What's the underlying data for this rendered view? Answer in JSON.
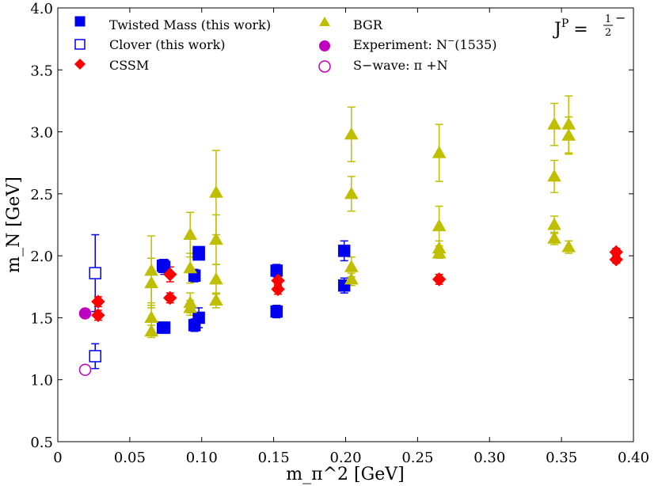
{
  "chart_data": {
    "type": "scatter",
    "title": "",
    "xlabel": "m_π^2 [GeV]",
    "ylabel": "m_N [GeV]",
    "xlim": [
      0,
      0.4
    ],
    "ylim": [
      0.5,
      4.0
    ],
    "x_ticks": [
      0,
      0.05,
      0.1,
      0.15,
      0.2,
      0.25,
      0.3,
      0.35,
      0.4
    ],
    "x_tick_labels": [
      "0",
      "0.05",
      "0.10",
      "0.15",
      "0.20",
      "0.25",
      "0.30",
      "0.35",
      "0.40"
    ],
    "y_ticks": [
      0.5,
      1.0,
      1.5,
      2.0,
      2.5,
      3.0,
      3.5,
      4.0
    ],
    "y_tick_labels": [
      "0.5",
      "1.0",
      "1.5",
      "2.0",
      "2.5",
      "3.0",
      "3.5",
      "4.0"
    ],
    "grid": false,
    "annotation": {
      "base": "J",
      "superscript": "P",
      "equals": "=",
      "sign": "−",
      "frac_num": "1",
      "frac_den": "2"
    },
    "legend": {
      "placement": "top",
      "columns": 2
    },
    "series": [
      {
        "name": "Twisted Mass (this work)",
        "marker": "square",
        "filled": true,
        "color": "#0000ee",
        "points": [
          {
            "x": 0.073,
            "y": 1.92,
            "err": 0.05
          },
          {
            "x": 0.074,
            "y": 1.91,
            "err": 0.06
          },
          {
            "x": 0.073,
            "y": 1.42,
            "err": 0.03
          },
          {
            "x": 0.074,
            "y": 1.42,
            "err": 0.03
          },
          {
            "x": 0.095,
            "y": 1.84,
            "err": 0.05
          },
          {
            "x": 0.095,
            "y": 1.44,
            "err": 0.05
          },
          {
            "x": 0.098,
            "y": 2.03,
            "err": 0.04
          },
          {
            "x": 0.098,
            "y": 2.01,
            "err": 0.04
          },
          {
            "x": 0.098,
            "y": 1.5,
            "err": 0.08
          },
          {
            "x": 0.152,
            "y": 1.88,
            "err": 0.05
          },
          {
            "x": 0.152,
            "y": 1.55,
            "err": 0.05
          },
          {
            "x": 0.199,
            "y": 2.04,
            "err": 0.08
          },
          {
            "x": 0.199,
            "y": 1.76,
            "err": 0.06
          }
        ]
      },
      {
        "name": "Clover (this work)",
        "marker": "square",
        "filled": false,
        "color": "#0000ee",
        "points": [
          {
            "x": 0.026,
            "y": 1.86,
            "err": 0.31
          },
          {
            "x": 0.026,
            "y": 1.19,
            "err": 0.1
          }
        ]
      },
      {
        "name": "CSSM",
        "marker": "diamond",
        "filled": true,
        "color": "#ff0000",
        "points": [
          {
            "x": 0.028,
            "y": 1.63,
            "err": 0.04
          },
          {
            "x": 0.028,
            "y": 1.52,
            "err": 0.04
          },
          {
            "x": 0.078,
            "y": 1.85,
            "err": 0.06
          },
          {
            "x": 0.078,
            "y": 1.66,
            "err": 0.04
          },
          {
            "x": 0.153,
            "y": 1.8,
            "err": 0.04
          },
          {
            "x": 0.153,
            "y": 1.73,
            "err": 0.04
          },
          {
            "x": 0.265,
            "y": 1.81,
            "err": 0.04
          },
          {
            "x": 0.388,
            "y": 2.03,
            "err": 0.03
          },
          {
            "x": 0.388,
            "y": 1.97,
            "err": 0.03
          }
        ]
      },
      {
        "name": "BGR",
        "marker": "triangle",
        "filled": true,
        "color": "#bfbf00",
        "points": [
          {
            "x": 0.065,
            "y": 1.88,
            "err": 0.28
          },
          {
            "x": 0.065,
            "y": 1.78,
            "err": 0.2
          },
          {
            "x": 0.065,
            "y": 1.5,
            "err": 0.12
          },
          {
            "x": 0.065,
            "y": 1.39,
            "err": 0.05
          },
          {
            "x": 0.092,
            "y": 2.17,
            "err": 0.18
          },
          {
            "x": 0.092,
            "y": 1.9,
            "err": 0.12
          },
          {
            "x": 0.092,
            "y": 1.62,
            "err": 0.08
          },
          {
            "x": 0.092,
            "y": 1.58,
            "err": 0.06
          },
          {
            "x": 0.11,
            "y": 2.51,
            "err": 0.34
          },
          {
            "x": 0.11,
            "y": 2.13,
            "err": 0.2
          },
          {
            "x": 0.11,
            "y": 1.81,
            "err": 0.12
          },
          {
            "x": 0.11,
            "y": 1.64,
            "err": 0.06
          },
          {
            "x": 0.204,
            "y": 2.98,
            "err": 0.22
          },
          {
            "x": 0.204,
            "y": 2.5,
            "err": 0.14
          },
          {
            "x": 0.204,
            "y": 1.91,
            "err": 0.08
          },
          {
            "x": 0.204,
            "y": 1.81,
            "err": 0.05
          },
          {
            "x": 0.265,
            "y": 2.83,
            "err": 0.23
          },
          {
            "x": 0.265,
            "y": 2.24,
            "err": 0.16
          },
          {
            "x": 0.265,
            "y": 2.06,
            "err": 0.06
          },
          {
            "x": 0.265,
            "y": 2.02,
            "err": 0.04
          },
          {
            "x": 0.345,
            "y": 3.06,
            "err": 0.17
          },
          {
            "x": 0.345,
            "y": 2.64,
            "err": 0.13
          },
          {
            "x": 0.345,
            "y": 2.25,
            "err": 0.07
          },
          {
            "x": 0.345,
            "y": 2.14,
            "err": 0.05
          },
          {
            "x": 0.355,
            "y": 3.06,
            "err": 0.23
          },
          {
            "x": 0.355,
            "y": 2.97,
            "err": 0.15
          },
          {
            "x": 0.355,
            "y": 2.07,
            "err": 0.05
          }
        ]
      },
      {
        "name_prefix": "Experiment: N",
        "name_sup": "−",
        "name_suffix": "(1535)",
        "marker": "circle",
        "filled": true,
        "color": "#bf00bf",
        "points": [
          {
            "x": 0.019,
            "y": 1.535,
            "err": 0
          }
        ]
      },
      {
        "name": "S−wave: π +N",
        "marker": "circle",
        "filled": false,
        "color": "#bf00bf",
        "points": [
          {
            "x": 0.019,
            "y": 1.08,
            "err": 0
          }
        ]
      }
    ]
  }
}
